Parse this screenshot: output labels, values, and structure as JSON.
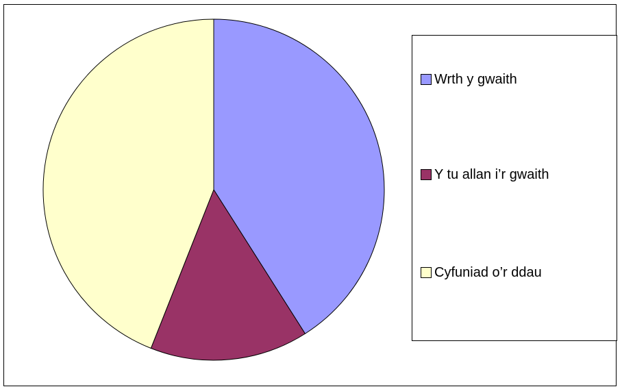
{
  "chart_data": {
    "type": "pie",
    "categories": [
      "Wrth y gwaith",
      "Y tu allan i’r gwaith",
      "Cyfuniad o’r ddau"
    ],
    "values": [
      41,
      15,
      44
    ],
    "colors": [
      "#9999ff",
      "#993366",
      "#ffffcc"
    ],
    "legend": "right",
    "title": ""
  }
}
